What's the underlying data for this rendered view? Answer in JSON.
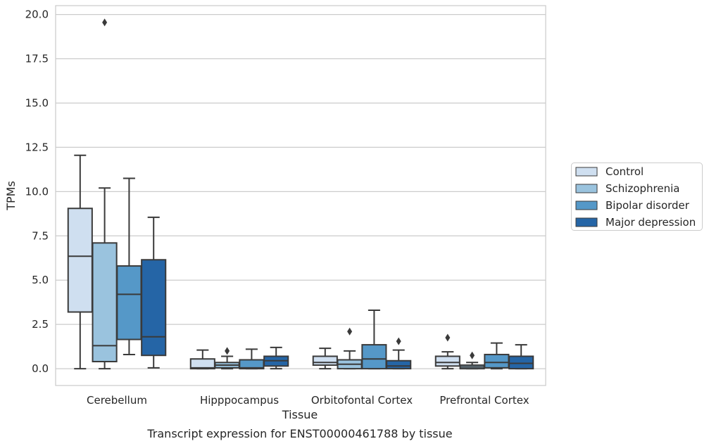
{
  "chart_data": {
    "type": "box",
    "title": "Transcript expression for ENST00000461788 by tissue",
    "xlabel": "Tissue",
    "ylabel": "TPMs",
    "ylim": [
      -0.95,
      20.5
    ],
    "yticks": [
      0.0,
      2.5,
      5.0,
      7.5,
      10.0,
      12.5,
      15.0,
      17.5,
      20.0
    ],
    "ytick_labels": [
      "0.0",
      "2.5",
      "5.0",
      "7.5",
      "10.0",
      "12.5",
      "15.0",
      "17.5",
      "20.0"
    ],
    "categories": [
      "Cerebellum",
      "Hipppocampus",
      "Orbitofontal Cortex",
      "Prefrontal Cortex"
    ],
    "grid": "horizontal",
    "legend_position": "right",
    "series": [
      {
        "name": "Control",
        "color": "#cfdff0",
        "boxes": [
          {
            "whislo": 0.0,
            "q1": 3.2,
            "med": 6.35,
            "q3": 9.05,
            "whishi": 12.05,
            "fliers": []
          },
          {
            "whislo": 0.0,
            "q1": 0.0,
            "med": 0.05,
            "q3": 0.55,
            "whishi": 1.05,
            "fliers": []
          },
          {
            "whislo": 0.0,
            "q1": 0.2,
            "med": 0.35,
            "q3": 0.7,
            "whishi": 1.15,
            "fliers": []
          },
          {
            "whislo": 0.0,
            "q1": 0.15,
            "med": 0.35,
            "q3": 0.7,
            "whishi": 0.95,
            "fliers": [
              1.75
            ]
          }
        ]
      },
      {
        "name": "Schizophrenia",
        "color": "#9ac3de",
        "boxes": [
          {
            "whislo": 0.0,
            "q1": 0.4,
            "med": 1.3,
            "q3": 7.1,
            "whishi": 10.2,
            "fliers": [
              19.55
            ]
          },
          {
            "whislo": 0.0,
            "q1": 0.05,
            "med": 0.2,
            "q3": 0.35,
            "whishi": 0.7,
            "fliers": [
              1.0
            ]
          },
          {
            "whislo": 0.0,
            "q1": 0.0,
            "med": 0.25,
            "q3": 0.5,
            "whishi": 1.0,
            "fliers": [
              2.1
            ]
          },
          {
            "whislo": 0.0,
            "q1": 0.0,
            "med": 0.1,
            "q3": 0.2,
            "whishi": 0.35,
            "fliers": [
              0.75
            ]
          }
        ]
      },
      {
        "name": "Bipolar disorder",
        "color": "#5598c8",
        "boxes": [
          {
            "whislo": 0.8,
            "q1": 1.65,
            "med": 4.2,
            "q3": 5.8,
            "whishi": 10.75,
            "fliers": []
          },
          {
            "whislo": 0.0,
            "q1": 0.0,
            "med": 0.05,
            "q3": 0.5,
            "whishi": 1.1,
            "fliers": []
          },
          {
            "whislo": 0.0,
            "q1": 0.0,
            "med": 0.55,
            "q3": 1.35,
            "whishi": 3.3,
            "fliers": []
          },
          {
            "whislo": 0.0,
            "q1": 0.05,
            "med": 0.35,
            "q3": 0.8,
            "whishi": 1.45,
            "fliers": []
          }
        ]
      },
      {
        "name": "Major depression",
        "color": "#2565a6",
        "boxes": [
          {
            "whislo": 0.05,
            "q1": 0.75,
            "med": 1.8,
            "q3": 6.15,
            "whishi": 8.55,
            "fliers": []
          },
          {
            "whislo": 0.0,
            "q1": 0.15,
            "med": 0.45,
            "q3": 0.7,
            "whishi": 1.2,
            "fliers": []
          },
          {
            "whislo": 0.0,
            "q1": 0.0,
            "med": 0.15,
            "q3": 0.45,
            "whishi": 1.05,
            "fliers": [
              1.55
            ]
          },
          {
            "whislo": 0.0,
            "q1": 0.0,
            "med": 0.3,
            "q3": 0.7,
            "whishi": 1.35,
            "fliers": []
          }
        ]
      }
    ]
  }
}
